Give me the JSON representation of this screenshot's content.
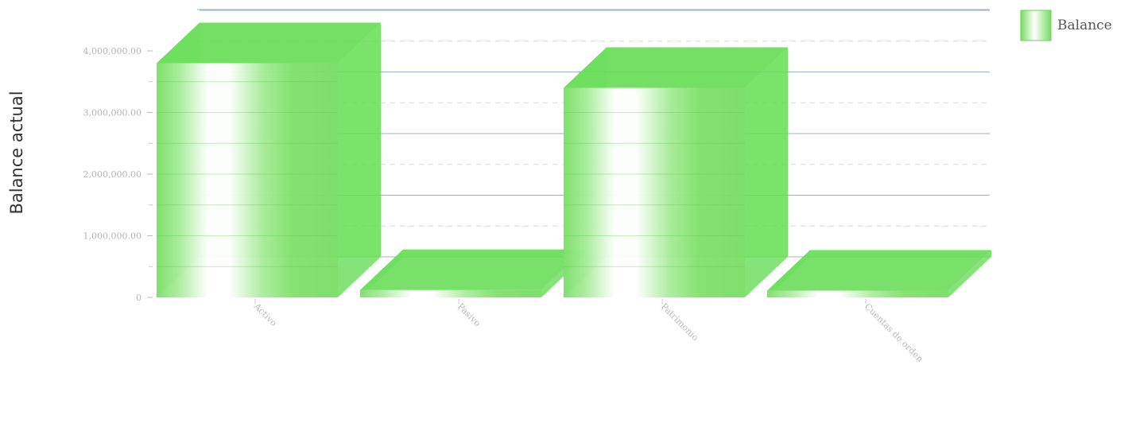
{
  "chart_data": {
    "type": "bar",
    "style": "3d-bar",
    "categories": [
      "Activo",
      "Pasivo",
      "Patrimonio",
      "Cuentas de orden"
    ],
    "series": [
      {
        "name": "Balance",
        "values": [
          3800000,
          120000,
          3400000,
          110000
        ]
      }
    ],
    "ylabel": "Balance actual",
    "xlabel": "",
    "ylim": [
      0,
      4000000
    ],
    "yticks": [
      0,
      1000000,
      2000000,
      3000000,
      4000000
    ],
    "ytick_labels": [
      "0",
      "1,000,000.00",
      "2,000,000.00",
      "3,000,000.00",
      "4,000,000.00"
    ],
    "grid": true,
    "legend": "top-right",
    "colors": {
      "bar": "#66dd55",
      "bar_highlight": "#ffffff",
      "grid": "#9fb0c8"
    }
  }
}
